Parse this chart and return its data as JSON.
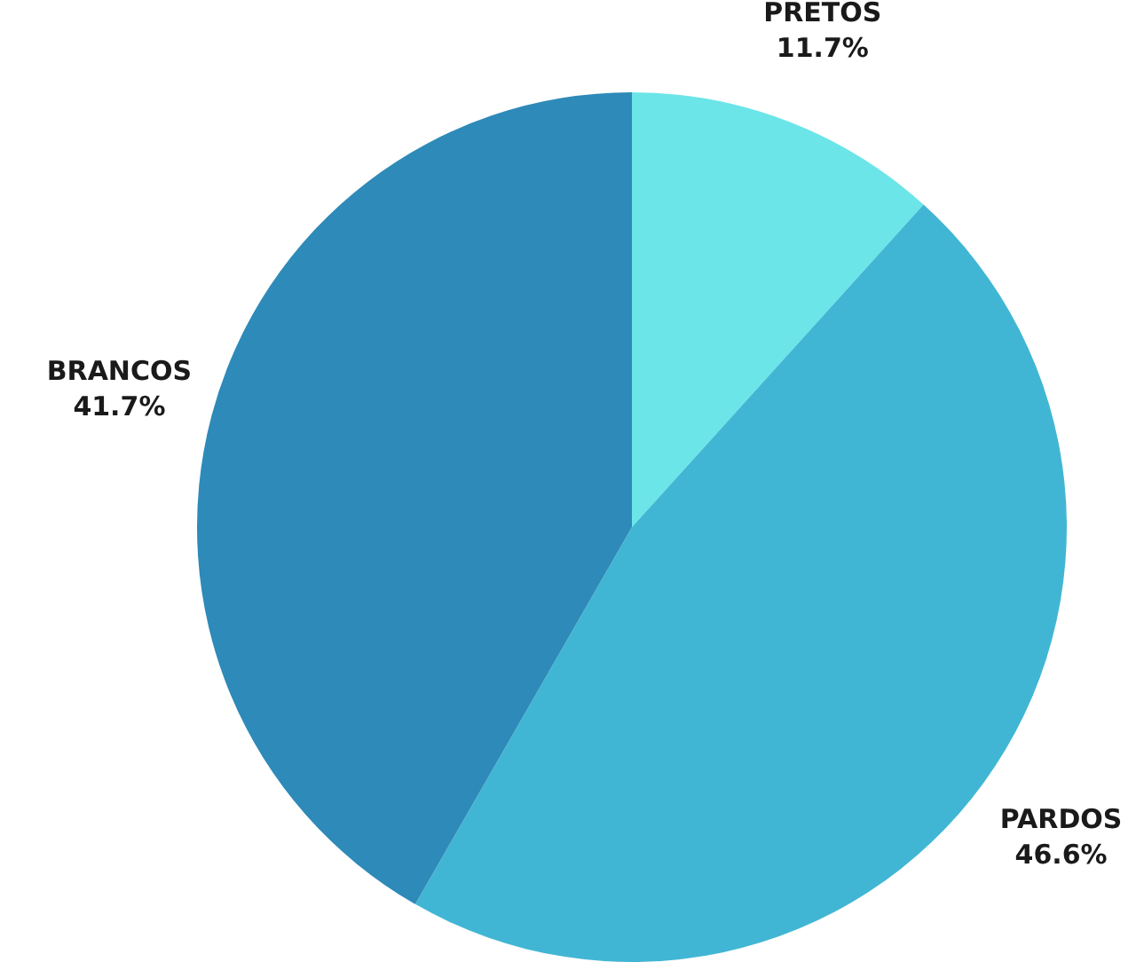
{
  "chart_data": {
    "type": "pie",
    "categories": [
      "PRETOS",
      "PARDOS",
      "BRANCOS"
    ],
    "values": [
      11.7,
      46.6,
      41.7
    ],
    "value_labels": [
      "11.7%",
      "46.6%",
      "41.7%"
    ],
    "colors": [
      "#6be5e8",
      "#41b6d4",
      "#2e8ab8"
    ],
    "legend": false
  }
}
